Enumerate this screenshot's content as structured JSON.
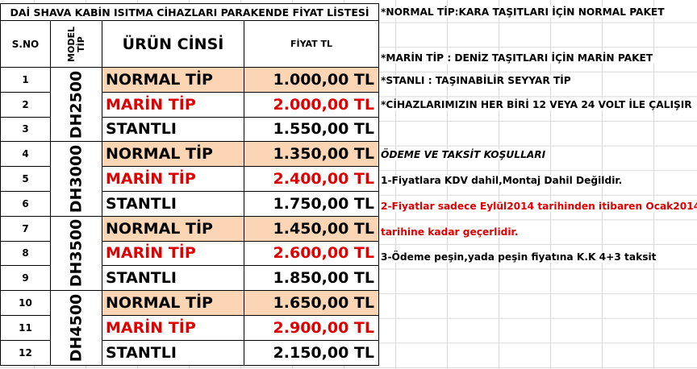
{
  "title": "DAİ SHAVA KABİN ISITMA CİHAZLARI PARAKENDE FİYAT LİSTESİ",
  "headers": {
    "sno": "S.NO",
    "model_line1": "MODEL",
    "model_line2": "TİP",
    "product": "ÜRÜN CİNSİ",
    "price": "FİYAT TL"
  },
  "colors": {
    "normal_fill": "#fcd5b4",
    "marin_text": "#e00000"
  },
  "models": [
    "DH2500",
    "DH3000",
    "DH3500",
    "DH4500"
  ],
  "rows": [
    {
      "no": "1",
      "product": "NORMAL TİP",
      "price": "1.000,00 TL",
      "kind": "normal"
    },
    {
      "no": "2",
      "product": "MARİN TİP",
      "price": "2.000,00 TL",
      "kind": "marin"
    },
    {
      "no": "3",
      "product": "STANTLI",
      "price": "1.550,00 TL",
      "kind": "stantli"
    },
    {
      "no": "4",
      "product": "NORMAL TİP",
      "price": "1.350,00 TL",
      "kind": "normal"
    },
    {
      "no": "5",
      "product": "MARİN TİP",
      "price": "2.400,00 TL",
      "kind": "marin"
    },
    {
      "no": "6",
      "product": "STANTLI",
      "price": "1.750,00 TL",
      "kind": "stantli"
    },
    {
      "no": "7",
      "product": "NORMAL TİP",
      "price": "1.450,00 TL",
      "kind": "normal"
    },
    {
      "no": "8",
      "product": "MARİN TİP",
      "price": "2.600,00 TL",
      "kind": "marin"
    },
    {
      "no": "9",
      "product": "STANTLI",
      "price": "1.850,00 TL",
      "kind": "stantli"
    },
    {
      "no": "10",
      "product": "NORMAL TİP",
      "price": "1.650,00 TL",
      "kind": "normal"
    },
    {
      "no": "11",
      "product": "MARİN TİP",
      "price": "2.900,00 TL",
      "kind": "marin"
    },
    {
      "no": "12",
      "product": "STANTLI",
      "price": "2.150,00 TL",
      "kind": "stantli"
    }
  ],
  "notes": [
    {
      "text": "*NORMAL TİP:KARA TAŞITLARI İÇİN NORMAL PAKET",
      "style": "normal"
    },
    {
      "text": "*MARİN TİP   : DENİZ TAŞITLARI İÇİN MARİN PAKET",
      "style": "normal"
    },
    {
      "text": "*STANLI          : TAŞINABİLİR SEYYAR TİP",
      "style": "normal"
    },
    {
      "text": "*CİHAZLARIMIZIN HER BİRİ 12 VEYA 24 VOLT İLE ÇALIŞIR",
      "style": "normal"
    },
    {
      "text": "ÖDEME VE TAKSİT KOŞULLARI",
      "style": "italic"
    },
    {
      "text": "1-Fiyatlara KDV dahil,Montaj Dahil Değildir.",
      "style": "normal"
    },
    {
      "text": "2-Fiyatlar sadece  Eylül2014 tarihinden itibaren Ocak2014",
      "style": "red"
    },
    {
      "text": " tarihine kadar  geçerlidir.",
      "style": "red"
    },
    {
      "text": "3-Ödeme peşin,yada peşin fiyatına K.K 4+3 taksit",
      "style": "normal"
    }
  ]
}
